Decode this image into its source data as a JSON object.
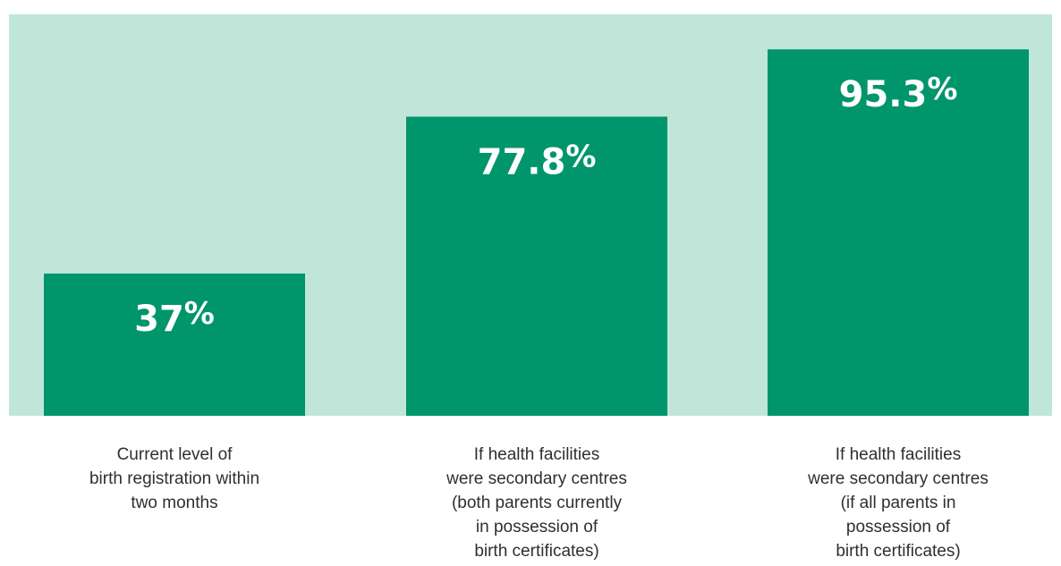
{
  "chart_data": {
    "type": "bar",
    "categories": [
      "Current level of birth registration within two months",
      "If health facilities were secondary centres (both parents currently in possession of birth certificates)",
      "If health facilities were secondary centres (if all parents in possession of birth certificates)"
    ],
    "category_label_lines": [
      [
        "Current level of",
        "birth registration within",
        "two months"
      ],
      [
        "If health facilities",
        "were secondary centres",
        "(both parents currently",
        "in possession of",
        "birth certificates)"
      ],
      [
        "If health facilities",
        "were secondary centres",
        "(if all parents in",
        "possession of",
        "birth certificates)"
      ]
    ],
    "values": [
      37,
      77.8,
      95.3
    ],
    "value_labels": [
      {
        "number": "37",
        "suffix": "%"
      },
      {
        "number": "77.8",
        "suffix": "%"
      },
      {
        "number": "95.3",
        "suffix": "%"
      }
    ],
    "ylim": [
      0,
      100
    ],
    "grid": false,
    "legend": "none",
    "colors": {
      "background_panel": "#c0e6da",
      "bar": "#00956b",
      "value_text": "#ffffff",
      "category_text": "#2f2f2f"
    }
  }
}
